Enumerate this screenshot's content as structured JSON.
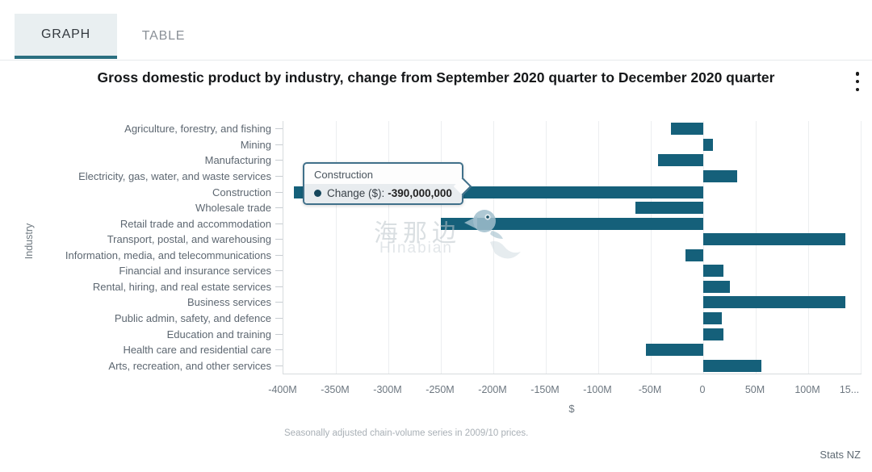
{
  "tabs": [
    {
      "label": "GRAPH",
      "active": true
    },
    {
      "label": "TABLE",
      "active": false
    }
  ],
  "header": {
    "title": "Gross domestic product by industry, change from September 2020 quarter to December 2020 quarter",
    "menu_icon": "kebab-menu-icon"
  },
  "chart_data": {
    "type": "bar",
    "orientation": "horizontal",
    "title": "Gross domestic product by industry, change from September 2020 quarter to December 2020 quarter",
    "xlabel": "$",
    "ylabel": "Industry",
    "xlim_millions": [
      -400,
      150
    ],
    "grid": true,
    "legend": false,
    "bar_color": "#15607a",
    "x_tick_values_millions": [
      -400,
      -350,
      -300,
      -250,
      -200,
      -150,
      -100,
      -50,
      0,
      50,
      100,
      150
    ],
    "x_tick_labels": [
      "-400M",
      "-350M",
      "-300M",
      "-250M",
      "-200M",
      "-150M",
      "-100M",
      "-50M",
      "0",
      "50M",
      "100M",
      "15..."
    ],
    "categories": [
      "Agriculture, forestry, and fishing",
      "Mining",
      "Manufacturing",
      "Electricity, gas, water, and waste services",
      "Construction",
      "Wholesale trade",
      "Retail trade and accommodation",
      "Transport, postal, and warehousing",
      "Information, media, and telecommunications",
      "Financial and insurance services",
      "Rental, hiring, and real estate services",
      "Business services",
      "Public admin, safety, and defence",
      "Education and training",
      "Health care and residential care",
      "Arts, recreation, and other services"
    ],
    "values_millions": [
      -31,
      9,
      -43,
      32,
      -390,
      -65,
      -250,
      135,
      -17,
      19,
      25,
      135,
      18,
      19,
      -55,
      55
    ],
    "highlighted_category": "Construction",
    "highlighted_value_dollars": "-390,000,000"
  },
  "tooltip": {
    "title": "Construction",
    "series_label": "Change ($):",
    "value": "-390,000,000"
  },
  "watermark": {
    "line1": "海那边",
    "line2": "Hinabian"
  },
  "footnote": "Seasonally adjusted chain-volume series in 2009/10 prices.",
  "source": "Stats NZ"
}
